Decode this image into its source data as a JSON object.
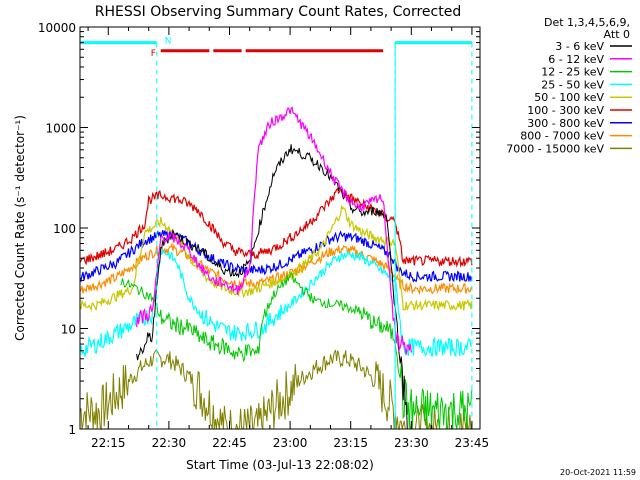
{
  "chart_data": {
    "type": "line",
    "title": "RHESSI Observing Summary Count Rates, Corrected",
    "xlabel": "Start Time (03-Jul-13 22:08:02)",
    "ylabel": "Corrected Count Rate (s⁻¹ detector⁻¹)",
    "y_scale": "log",
    "ylim": [
      1,
      10000
    ],
    "xlim": [
      "22:08",
      "23:47"
    ],
    "x_ticks": [
      "22:15",
      "22:30",
      "22:45",
      "23:00",
      "23:15",
      "23:30",
      "23:45"
    ],
    "y_ticks": [
      "1",
      "10",
      "100",
      "1000",
      "10000"
    ],
    "grid": false,
    "legend_position": "right",
    "legend_header": [
      "Det 1,3,4,5,6,9,",
      "Att 0"
    ],
    "footer_date": "20-Oct-2021 11:59",
    "bands": {
      "night_label": "N",
      "flare_label": "F",
      "night_intervals": [
        [
          "22:08",
          "22:27"
        ],
        [
          "23:26",
          "23:45"
        ]
      ],
      "flare_intervals": [
        [
          "22:28",
          "22:40"
        ],
        [
          "22:41",
          "22:48"
        ],
        [
          "22:49",
          "23:23"
        ]
      ],
      "dashed_lines": [
        "22:27",
        "23:26",
        "23:45"
      ],
      "solid_lines": [
        "22:08",
        "23:26"
      ]
    },
    "series": [
      {
        "name": "3 - 6 keV",
        "color": "#000000",
        "points": [
          [
            "22:22",
            5
          ],
          [
            "22:26",
            9
          ],
          [
            "22:28",
            65
          ],
          [
            "22:31",
            90
          ],
          [
            "22:35",
            70
          ],
          [
            "22:38",
            60
          ],
          [
            "22:41",
            45
          ],
          [
            "22:44",
            38
          ],
          [
            "22:47",
            35
          ],
          [
            "22:50",
            45
          ],
          [
            "22:53",
            130
          ],
          [
            "22:56",
            350
          ],
          [
            "23:00",
            620
          ],
          [
            "23:04",
            520
          ],
          [
            "23:08",
            400
          ],
          [
            "23:12",
            250
          ],
          [
            "23:15",
            160
          ],
          [
            "23:18",
            140
          ],
          [
            "23:21",
            150
          ],
          [
            "23:24",
            130
          ],
          [
            "23:26",
            15
          ],
          [
            "23:28",
            3
          ],
          [
            "23:29",
            1.5
          ]
        ]
      },
      {
        "name": "6 - 12 keV",
        "color": "#ff00ff",
        "points": [
          [
            "22:22",
            12
          ],
          [
            "22:26",
            15
          ],
          [
            "22:28",
            80
          ],
          [
            "22:31",
            80
          ],
          [
            "22:35",
            60
          ],
          [
            "22:38",
            40
          ],
          [
            "22:41",
            30
          ],
          [
            "22:44",
            28
          ],
          [
            "22:47",
            24
          ],
          [
            "22:50",
            40
          ],
          [
            "22:52",
            600
          ],
          [
            "22:55",
            1100
          ],
          [
            "22:58",
            1300
          ],
          [
            "23:00",
            1500
          ],
          [
            "23:02",
            1200
          ],
          [
            "23:05",
            800
          ],
          [
            "23:08",
            500
          ],
          [
            "23:11",
            300
          ],
          [
            "23:14",
            200
          ],
          [
            "23:17",
            160
          ],
          [
            "23:20",
            180
          ],
          [
            "23:23",
            200
          ],
          [
            "23:26",
            8
          ],
          [
            "23:30",
            6
          ]
        ]
      },
      {
        "name": "12 - 25 keV",
        "color": "#00c800",
        "points": [
          [
            "22:18",
            30
          ],
          [
            "22:22",
            25
          ],
          [
            "22:26",
            20
          ],
          [
            "22:28",
            13
          ],
          [
            "22:31",
            11
          ],
          [
            "22:35",
            10
          ],
          [
            "22:38",
            8
          ],
          [
            "22:41",
            7
          ],
          [
            "22:44",
            6.5
          ],
          [
            "22:47",
            5.5
          ],
          [
            "22:50",
            6
          ],
          [
            "22:52",
            5.5
          ],
          [
            "22:53",
            12
          ],
          [
            "22:56",
            22
          ],
          [
            "23:00",
            33
          ],
          [
            "23:03",
            25
          ],
          [
            "23:06",
            19
          ],
          [
            "23:09",
            18
          ],
          [
            "23:12",
            17
          ],
          [
            "23:15",
            16
          ],
          [
            "23:18",
            14
          ],
          [
            "23:21",
            11
          ],
          [
            "23:24",
            10
          ],
          [
            "23:26",
            8
          ],
          [
            "23:28",
            2
          ],
          [
            "23:30",
            1.5
          ],
          [
            "23:35",
            1.5
          ],
          [
            "23:45",
            1.5
          ]
        ]
      },
      {
        "name": "25 - 50 keV",
        "color": "#00ffff",
        "points": [
          [
            "22:08",
            6
          ],
          [
            "22:12",
            7
          ],
          [
            "22:17",
            9
          ],
          [
            "22:21",
            11
          ],
          [
            "22:24",
            13
          ],
          [
            "22:26",
            14
          ],
          [
            "22:28",
            60
          ],
          [
            "22:30",
            55
          ],
          [
            "22:32",
            45
          ],
          [
            "22:35",
            20
          ],
          [
            "22:38",
            14
          ],
          [
            "22:41",
            11
          ],
          [
            "22:44",
            9.5
          ],
          [
            "22:47",
            9
          ],
          [
            "22:50",
            9.5
          ],
          [
            "22:53",
            10
          ],
          [
            "22:56",
            13
          ],
          [
            "23:00",
            17
          ],
          [
            "23:04",
            25
          ],
          [
            "23:08",
            37
          ],
          [
            "23:12",
            52
          ],
          [
            "23:15",
            55
          ],
          [
            "23:18",
            50
          ],
          [
            "23:21",
            42
          ],
          [
            "23:24",
            34
          ],
          [
            "23:26",
            30
          ],
          [
            "23:28",
            6.5
          ],
          [
            "23:45",
            6.5
          ]
        ]
      },
      {
        "name": "50 - 100 keV",
        "color": "#c8c800",
        "points": [
          [
            "22:08",
            17
          ],
          [
            "22:12",
            17
          ],
          [
            "22:17",
            21
          ],
          [
            "22:21",
            25
          ],
          [
            "22:24",
            90
          ],
          [
            "22:28",
            115
          ],
          [
            "22:30",
            100
          ],
          [
            "22:33",
            70
          ],
          [
            "22:36",
            45
          ],
          [
            "22:39",
            33
          ],
          [
            "22:42",
            27
          ],
          [
            "22:45",
            24
          ],
          [
            "22:48",
            23
          ],
          [
            "22:51",
            24
          ],
          [
            "22:54",
            27
          ],
          [
            "22:57",
            30
          ],
          [
            "23:00",
            33
          ],
          [
            "23:04",
            45
          ],
          [
            "23:08",
            65
          ],
          [
            "23:11",
            110
          ],
          [
            "23:13",
            160
          ],
          [
            "23:15",
            110
          ],
          [
            "23:18",
            90
          ],
          [
            "23:21",
            80
          ],
          [
            "23:24",
            75
          ],
          [
            "23:26",
            70
          ],
          [
            "23:28",
            17
          ],
          [
            "23:45",
            17
          ]
        ]
      },
      {
        "name": "100 - 300 keV",
        "color": "#e00000",
        "points": [
          [
            "22:08",
            47
          ],
          [
            "22:12",
            52
          ],
          [
            "22:17",
            62
          ],
          [
            "22:21",
            80
          ],
          [
            "22:24",
            110
          ],
          [
            "22:25",
            190
          ],
          [
            "22:28",
            210
          ],
          [
            "22:31",
            200
          ],
          [
            "22:34",
            180
          ],
          [
            "22:37",
            155
          ],
          [
            "22:40",
            110
          ],
          [
            "22:43",
            75
          ],
          [
            "22:46",
            60
          ],
          [
            "22:49",
            55
          ],
          [
            "22:52",
            55
          ],
          [
            "22:55",
            60
          ],
          [
            "22:58",
            70
          ],
          [
            "23:01",
            85
          ],
          [
            "23:04",
            105
          ],
          [
            "23:07",
            140
          ],
          [
            "23:10",
            190
          ],
          [
            "23:12",
            240
          ],
          [
            "23:15",
            200
          ],
          [
            "23:18",
            170
          ],
          [
            "23:21",
            150
          ],
          [
            "23:24",
            125
          ],
          [
            "23:26",
            120
          ],
          [
            "23:28",
            47
          ],
          [
            "23:45",
            47
          ]
        ]
      },
      {
        "name": "300 - 800 keV",
        "color": "#0000ff",
        "points": [
          [
            "22:08",
            32
          ],
          [
            "22:12",
            37
          ],
          [
            "22:17",
            45
          ],
          [
            "22:21",
            60
          ],
          [
            "22:24",
            75
          ],
          [
            "22:28",
            85
          ],
          [
            "22:31",
            85
          ],
          [
            "22:34",
            75
          ],
          [
            "22:37",
            62
          ],
          [
            "22:40",
            52
          ],
          [
            "22:43",
            45
          ],
          [
            "22:46",
            40
          ],
          [
            "22:49",
            38
          ],
          [
            "22:52",
            38
          ],
          [
            "22:55",
            40
          ],
          [
            "22:58",
            44
          ],
          [
            "23:01",
            50
          ],
          [
            "23:04",
            58
          ],
          [
            "23:07",
            66
          ],
          [
            "23:10",
            78
          ],
          [
            "23:13",
            83
          ],
          [
            "23:16",
            80
          ],
          [
            "23:19",
            72
          ],
          [
            "23:22",
            63
          ],
          [
            "23:25",
            53
          ],
          [
            "23:27",
            38
          ],
          [
            "23:30",
            33
          ],
          [
            "23:45",
            33
          ]
        ]
      },
      {
        "name": "800 - 7000 keV",
        "color": "#ff8c00",
        "points": [
          [
            "22:08",
            24
          ],
          [
            "22:12",
            27
          ],
          [
            "22:17",
            32
          ],
          [
            "22:21",
            42
          ],
          [
            "22:24",
            52
          ],
          [
            "22:28",
            62
          ],
          [
            "22:31",
            62
          ],
          [
            "22:34",
            55
          ],
          [
            "22:37",
            45
          ],
          [
            "22:40",
            37
          ],
          [
            "22:43",
            32
          ],
          [
            "22:46",
            29
          ],
          [
            "22:49",
            28
          ],
          [
            "22:52",
            28
          ],
          [
            "22:55",
            30
          ],
          [
            "22:58",
            33
          ],
          [
            "23:01",
            37
          ],
          [
            "23:04",
            43
          ],
          [
            "23:07",
            50
          ],
          [
            "23:10",
            58
          ],
          [
            "23:13",
            62
          ],
          [
            "23:16",
            58
          ],
          [
            "23:19",
            52
          ],
          [
            "23:22",
            45
          ],
          [
            "23:25",
            38
          ],
          [
            "23:27",
            28
          ],
          [
            "23:30",
            25
          ],
          [
            "23:45",
            25
          ]
        ]
      },
      {
        "name": "7000 - 15000 keV",
        "color": "#808000",
        "points": [
          [
            "22:08",
            1.5
          ],
          [
            "22:13",
            1.5
          ],
          [
            "22:16",
            2
          ],
          [
            "22:20",
            3
          ],
          [
            "22:23",
            4
          ],
          [
            "22:26",
            5
          ],
          [
            "22:30",
            5
          ],
          [
            "22:33",
            4
          ],
          [
            "22:36",
            3
          ],
          [
            "22:39",
            2
          ],
          [
            "22:41",
            1.5
          ],
          [
            "22:44",
            1
          ],
          [
            "22:52",
            1
          ],
          [
            "22:55",
            1.5
          ],
          [
            "22:58",
            2
          ],
          [
            "23:02",
            3
          ],
          [
            "23:06",
            4
          ],
          [
            "23:10",
            5
          ],
          [
            "23:14",
            5
          ],
          [
            "23:18",
            4
          ],
          [
            "23:21",
            3
          ],
          [
            "23:24",
            2
          ],
          [
            "23:26",
            1.5
          ],
          [
            "23:28",
            1
          ],
          [
            "23:45",
            1
          ]
        ]
      }
    ]
  }
}
